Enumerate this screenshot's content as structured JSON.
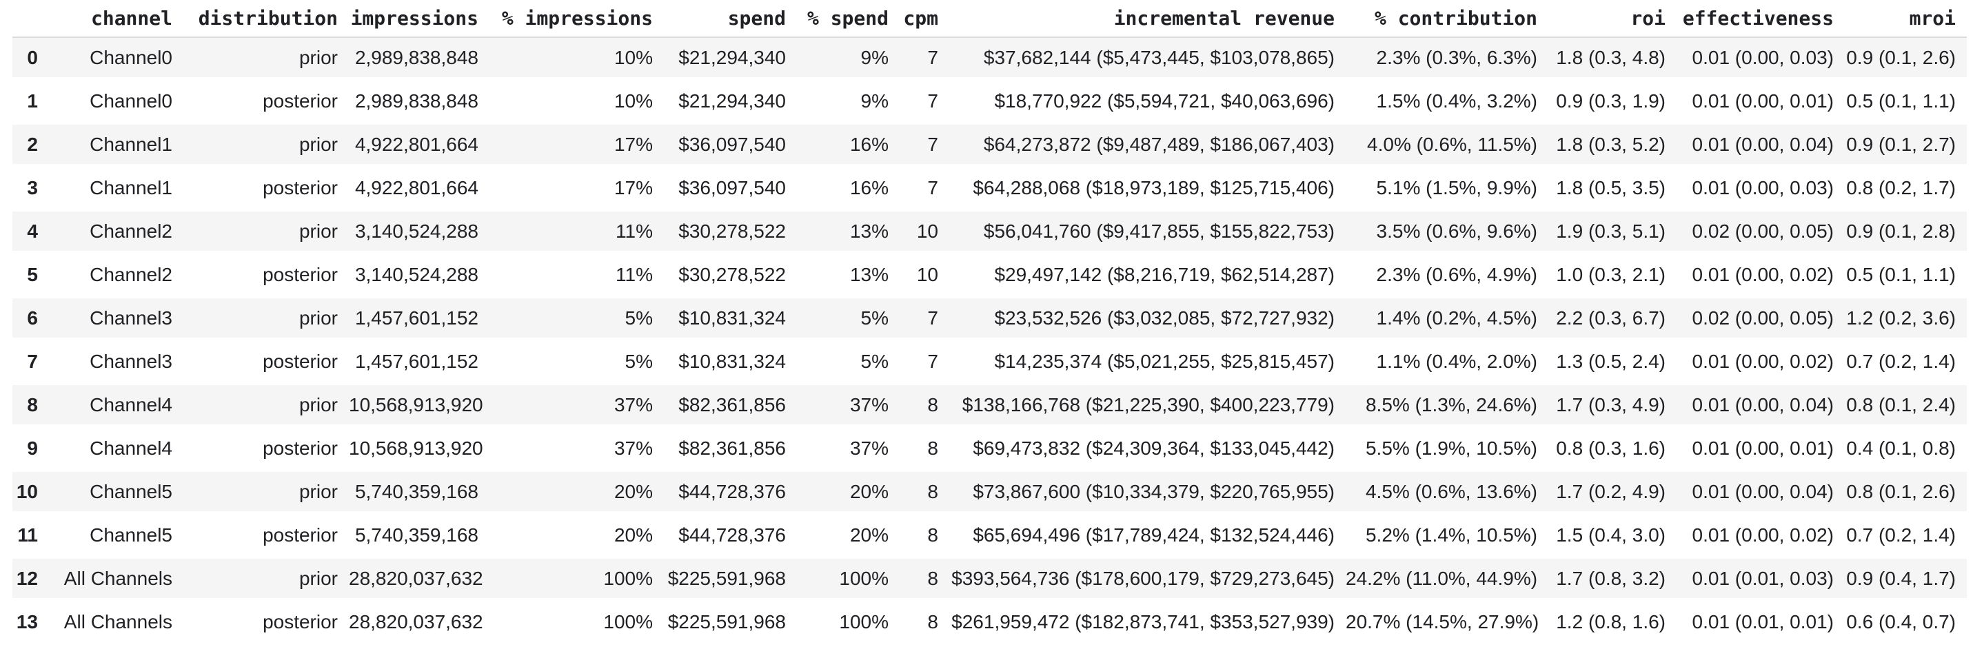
{
  "colors": {
    "row_stripe": "#f5f5f5",
    "header_border": "#dcdcdc",
    "text": "#202124",
    "background": "#ffffff"
  },
  "chart_data": {
    "type": "table",
    "columns": [
      "channel",
      "distribution",
      "impressions",
      "% impressions",
      "spend",
      "% spend",
      "cpm",
      "incremental revenue",
      "% contribution",
      "roi",
      "effectiveness",
      "mroi"
    ],
    "index": [
      "0",
      "1",
      "2",
      "3",
      "4",
      "5",
      "6",
      "7",
      "8",
      "9",
      "10",
      "11",
      "12",
      "13"
    ],
    "rows": [
      [
        "Channel0",
        "prior",
        "2,989,838,848",
        "10%",
        "$21,294,340",
        "9%",
        "7",
        "$37,682,144 ($5,473,445, $103,078,865)",
        "2.3% (0.3%, 6.3%)",
        "1.8 (0.3, 4.8)",
        "0.01 (0.00, 0.03)",
        "0.9 (0.1, 2.6)"
      ],
      [
        "Channel0",
        "posterior",
        "2,989,838,848",
        "10%",
        "$21,294,340",
        "9%",
        "7",
        "$18,770,922 ($5,594,721, $40,063,696)",
        "1.5% (0.4%, 3.2%)",
        "0.9 (0.3, 1.9)",
        "0.01 (0.00, 0.01)",
        "0.5 (0.1, 1.1)"
      ],
      [
        "Channel1",
        "prior",
        "4,922,801,664",
        "17%",
        "$36,097,540",
        "16%",
        "7",
        "$64,273,872 ($9,487,489, $186,067,403)",
        "4.0% (0.6%, 11.5%)",
        "1.8 (0.3, 5.2)",
        "0.01 (0.00, 0.04)",
        "0.9 (0.1, 2.7)"
      ],
      [
        "Channel1",
        "posterior",
        "4,922,801,664",
        "17%",
        "$36,097,540",
        "16%",
        "7",
        "$64,288,068 ($18,973,189, $125,715,406)",
        "5.1% (1.5%, 9.9%)",
        "1.8 (0.5, 3.5)",
        "0.01 (0.00, 0.03)",
        "0.8 (0.2, 1.7)"
      ],
      [
        "Channel2",
        "prior",
        "3,140,524,288",
        "11%",
        "$30,278,522",
        "13%",
        "10",
        "$56,041,760 ($9,417,855, $155,822,753)",
        "3.5% (0.6%, 9.6%)",
        "1.9 (0.3, 5.1)",
        "0.02 (0.00, 0.05)",
        "0.9 (0.1, 2.8)"
      ],
      [
        "Channel2",
        "posterior",
        "3,140,524,288",
        "11%",
        "$30,278,522",
        "13%",
        "10",
        "$29,497,142 ($8,216,719, $62,514,287)",
        "2.3% (0.6%, 4.9%)",
        "1.0 (0.3, 2.1)",
        "0.01 (0.00, 0.02)",
        "0.5 (0.1, 1.1)"
      ],
      [
        "Channel3",
        "prior",
        "1,457,601,152",
        "5%",
        "$10,831,324",
        "5%",
        "7",
        "$23,532,526 ($3,032,085, $72,727,932)",
        "1.4% (0.2%, 4.5%)",
        "2.2 (0.3, 6.7)",
        "0.02 (0.00, 0.05)",
        "1.2 (0.2, 3.6)"
      ],
      [
        "Channel3",
        "posterior",
        "1,457,601,152",
        "5%",
        "$10,831,324",
        "5%",
        "7",
        "$14,235,374 ($5,021,255, $25,815,457)",
        "1.1% (0.4%, 2.0%)",
        "1.3 (0.5, 2.4)",
        "0.01 (0.00, 0.02)",
        "0.7 (0.2, 1.4)"
      ],
      [
        "Channel4",
        "prior",
        "10,568,913,920",
        "37%",
        "$82,361,856",
        "37%",
        "8",
        "$138,166,768 ($21,225,390, $400,223,779)",
        "8.5% (1.3%, 24.6%)",
        "1.7 (0.3, 4.9)",
        "0.01 (0.00, 0.04)",
        "0.8 (0.1, 2.4)"
      ],
      [
        "Channel4",
        "posterior",
        "10,568,913,920",
        "37%",
        "$82,361,856",
        "37%",
        "8",
        "$69,473,832 ($24,309,364, $133,045,442)",
        "5.5% (1.9%, 10.5%)",
        "0.8 (0.3, 1.6)",
        "0.01 (0.00, 0.01)",
        "0.4 (0.1, 0.8)"
      ],
      [
        "Channel5",
        "prior",
        "5,740,359,168",
        "20%",
        "$44,728,376",
        "20%",
        "8",
        "$73,867,600 ($10,334,379, $220,765,955)",
        "4.5% (0.6%, 13.6%)",
        "1.7 (0.2, 4.9)",
        "0.01 (0.00, 0.04)",
        "0.8 (0.1, 2.6)"
      ],
      [
        "Channel5",
        "posterior",
        "5,740,359,168",
        "20%",
        "$44,728,376",
        "20%",
        "8",
        "$65,694,496 ($17,789,424, $132,524,446)",
        "5.2% (1.4%, 10.5%)",
        "1.5 (0.4, 3.0)",
        "0.01 (0.00, 0.02)",
        "0.7 (0.2, 1.4)"
      ],
      [
        "All Channels",
        "prior",
        "28,820,037,632",
        "100%",
        "$225,591,968",
        "100%",
        "8",
        "$393,564,736 ($178,600,179, $729,273,645)",
        "24.2% (11.0%, 44.9%)",
        "1.7 (0.8, 3.2)",
        "0.01 (0.01, 0.03)",
        "0.9 (0.4, 1.7)"
      ],
      [
        "All Channels",
        "posterior",
        "28,820,037,632",
        "100%",
        "$225,591,968",
        "100%",
        "8",
        "$261,959,472 ($182,873,741, $353,527,939)",
        "20.7% (14.5%, 27.9%)",
        "1.2 (0.8, 1.6)",
        "0.01 (0.01, 0.01)",
        "0.6 (0.4, 0.7)"
      ]
    ]
  }
}
